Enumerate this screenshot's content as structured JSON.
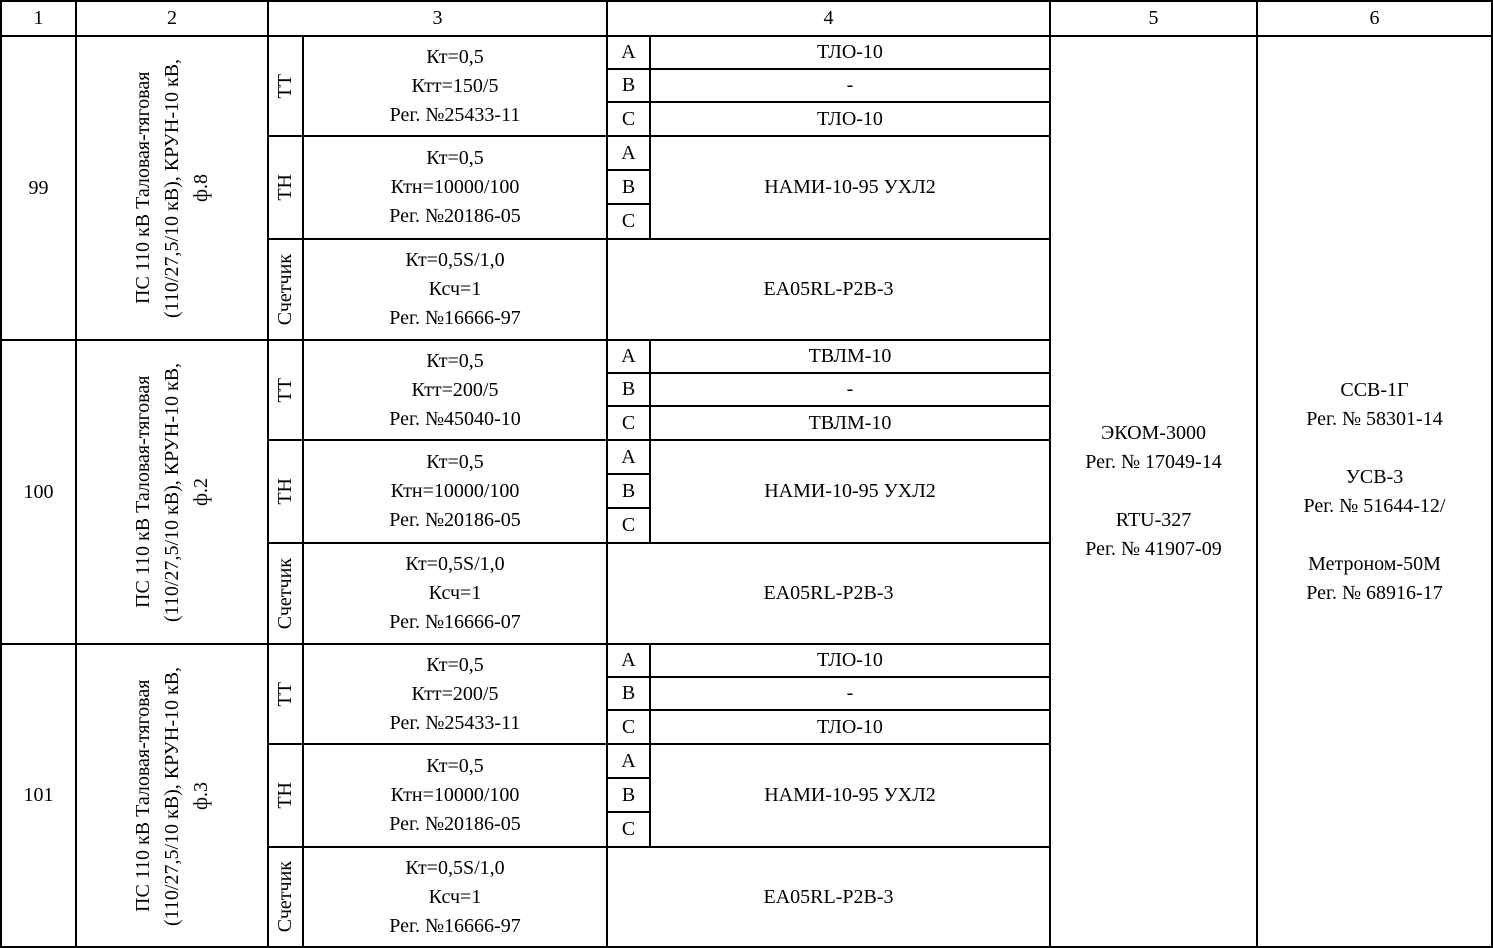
{
  "header": [
    "1",
    "2",
    "3",
    "4",
    "5",
    "6"
  ],
  "phases": [
    "A",
    "B",
    "C"
  ],
  "labels": {
    "tt": "ТТ",
    "tn": "ТН",
    "counter": "Счетчик"
  },
  "col5": "ЭКОМ-3000\nРег. № 17049-14\n\nRTU-327\nРег. № 41907-09",
  "col6": "ССВ-1Г\nРег. № 58301-14\n\nУСВ-3\nРег. № 51644-12/\n\nМетроном-50М\nРег. № 68916-17",
  "rows": [
    {
      "num": "99",
      "name": "ПС 110 кВ Таловая-тяговая (110/27,5/10 кВ), КРУН-10 кВ, ф.8",
      "tt_params": "Кт=0,5\nКтт=150/5\nРег. №25433-11",
      "tt_types": [
        "ТЛО-10",
        "-",
        "ТЛО-10"
      ],
      "tn_params": "Кт=0,5\nКтн=10000/100\nРег. №20186-05",
      "tn_type": "НАМИ-10-95 УХЛ2",
      "counter_params": "Кт=0,5S/1,0\nКсч=1\nРег. №16666-97",
      "counter_type": "EA05RL-P2B-3"
    },
    {
      "num": "100",
      "name": "ПС 110 кВ Таловая-тяговая (110/27,5/10 кВ), КРУН-10 кВ, ф.2",
      "tt_params": "Кт=0,5\nКтт=200/5\nРег. №45040-10",
      "tt_types": [
        "ТВЛМ-10",
        "-",
        "ТВЛМ-10"
      ],
      "tn_params": "Кт=0,5\nКтн=10000/100\nРег. №20186-05",
      "tn_type": "НАМИ-10-95 УХЛ2",
      "counter_params": "Кт=0,5S/1,0\nКсч=1\nРег. №16666-07",
      "counter_type": "EA05RL-P2B-3"
    },
    {
      "num": "101",
      "name": "ПС 110 кВ Таловая-тяговая (110/27,5/10 кВ), КРУН-10 кВ, ф.3",
      "tt_params": "Кт=0,5\nКтт=200/5\nРег. №25433-11",
      "tt_types": [
        "ТЛО-10",
        "-",
        "ТЛО-10"
      ],
      "tn_params": "Кт=0,5\nКтн=10000/100\nРег. №20186-05",
      "tn_type": "НАМИ-10-95 УХЛ2",
      "counter_params": "Кт=0,5S/1,0\nКсч=1\nРег. №16666-97",
      "counter_type": "EA05RL-P2B-3"
    }
  ]
}
